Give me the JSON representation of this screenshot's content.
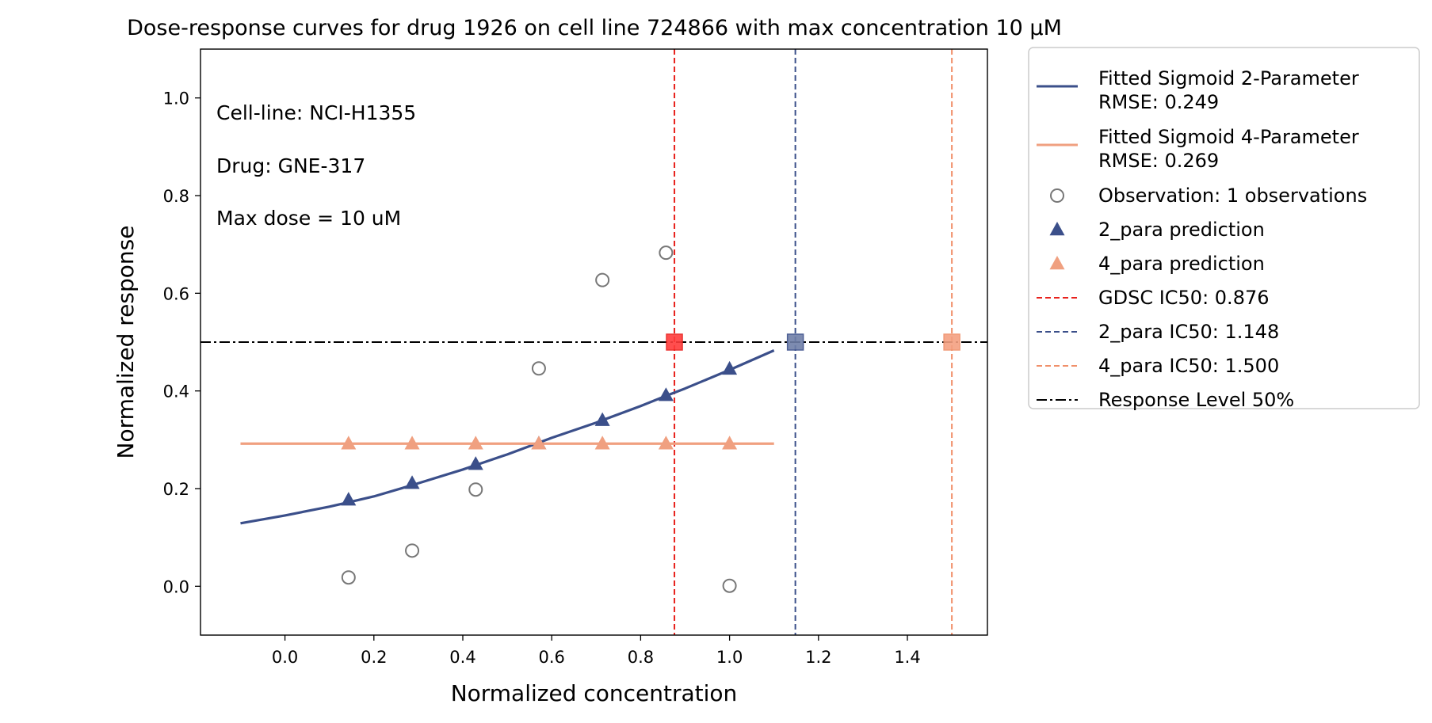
{
  "chart_data": {
    "type": "scatter",
    "title": "Dose-response curves for drug 1926 on cell line 724866 with max concentration 10 μM",
    "xlabel": "Normalized concentration",
    "ylabel": "Normalized response",
    "xlim": [
      -0.19,
      1.58
    ],
    "ylim": [
      -0.1,
      1.1
    ],
    "x_ticks": [
      0.0,
      0.2,
      0.4,
      0.6,
      0.8,
      1.0,
      1.2,
      1.4
    ],
    "x_tick_labels": [
      "0.0",
      "0.2",
      "0.4",
      "0.6",
      "0.8",
      "1.0",
      "1.2",
      "1.4"
    ],
    "y_ticks": [
      0.0,
      0.2,
      0.4,
      0.6,
      0.8,
      1.0
    ],
    "y_tick_labels": [
      "0.0",
      "0.2",
      "0.4",
      "0.6",
      "0.8",
      "1.0"
    ],
    "grid": false,
    "legend_placement": "outside-right-top",
    "annotations": [
      "Cell-line: NCI-H1355",
      "Drug: GNE-317",
      "Max dose = 10 uM"
    ],
    "series": [
      {
        "name": "Fitted Sigmoid 2-Parameter\nRMSE: 0.249",
        "legend_lines": [
          "Fitted Sigmoid 2-Parameter",
          "RMSE: 0.249"
        ],
        "kind": "line",
        "color": "#3b4f8a",
        "x": [
          -0.1,
          0.0,
          0.1,
          0.143,
          0.2,
          0.286,
          0.3,
          0.4,
          0.429,
          0.5,
          0.571,
          0.6,
          0.7,
          0.714,
          0.8,
          0.857,
          0.9,
          1.0,
          1.1
        ],
        "y": [
          0.129,
          0.145,
          0.163,
          0.172,
          0.184,
          0.207,
          0.211,
          0.239,
          0.248,
          0.27,
          0.294,
          0.304,
          0.335,
          0.34,
          0.369,
          0.39,
          0.405,
          0.443,
          0.483
        ]
      },
      {
        "name": "Fitted Sigmoid 4-Parameter\nRMSE: 0.269",
        "legend_lines": [
          "Fitted Sigmoid 4-Parameter",
          "RMSE: 0.269"
        ],
        "kind": "line",
        "color": "#f0a080",
        "x": [
          -0.1,
          1.1
        ],
        "y": [
          0.292,
          0.292
        ]
      },
      {
        "name": "Observation: 1 observations",
        "kind": "scatter-open-circle",
        "color": "#777777",
        "x": [
          0.143,
          0.286,
          0.429,
          0.571,
          0.714,
          0.857,
          1.0
        ],
        "y": [
          0.018,
          0.073,
          0.198,
          0.446,
          0.627,
          0.683,
          0.001
        ]
      },
      {
        "name": "2_para prediction",
        "kind": "scatter-triangle",
        "color": "#3b4f8a",
        "x": [
          0.143,
          0.286,
          0.429,
          0.571,
          0.714,
          0.857,
          1.0
        ],
        "y": [
          0.177,
          0.211,
          0.25,
          0.292,
          0.34,
          0.391,
          0.445
        ]
      },
      {
        "name": "4_para prediction",
        "kind": "scatter-triangle",
        "color": "#f0a080",
        "x": [
          0.143,
          0.286,
          0.429,
          0.571,
          0.714,
          0.857,
          1.0
        ],
        "y": [
          0.292,
          0.292,
          0.292,
          0.292,
          0.292,
          0.292,
          0.292
        ]
      },
      {
        "name": "GDSC IC50: 0.876",
        "kind": "vline-dashed",
        "color": "#e8211c",
        "marker_color": "#ff3b3b",
        "x": 0.876,
        "marker_y": 0.5
      },
      {
        "name": "2_para IC50: 1.148",
        "kind": "vline-dashed",
        "color": "#3b4f8a",
        "marker_color": "#6f7fa8",
        "x": 1.148,
        "marker_y": 0.5
      },
      {
        "name": "4_para IC50: 1.500",
        "kind": "vline-dashed",
        "color": "#f0906a",
        "marker_color": "#f4a081",
        "x": 1.5,
        "marker_y": 0.5
      },
      {
        "name": "Response Level 50%",
        "kind": "hline-dashdot",
        "color": "#000000",
        "y": 0.5
      }
    ]
  }
}
